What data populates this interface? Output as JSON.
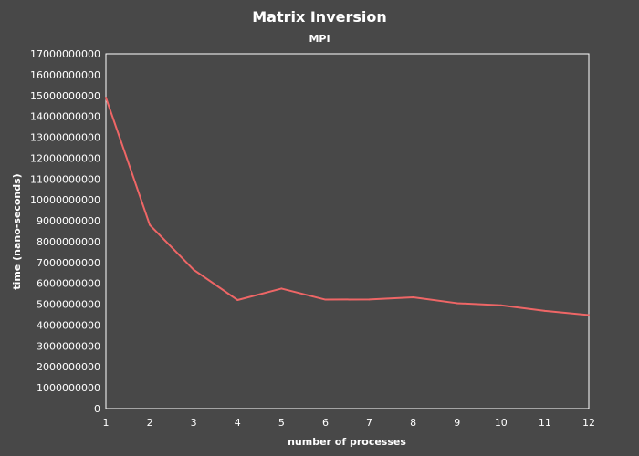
{
  "chart_data": {
    "type": "line",
    "title": "Matrix Inversion",
    "subtitle": "MPI",
    "xlabel": "number of processes",
    "ylabel": "time (nano-seconds)",
    "x": [
      1,
      2,
      3,
      4,
      5,
      6,
      7,
      8,
      9,
      10,
      11,
      12
    ],
    "series": [
      {
        "values": [
          14900000000,
          8800000000,
          6650000000,
          5200000000,
          5750000000,
          5220000000,
          5230000000,
          5330000000,
          5050000000,
          4950000000,
          4680000000,
          4480000000
        ],
        "color": "#ee6666"
      }
    ],
    "xlim": [
      1,
      12
    ],
    "ylim": [
      0,
      17000000000
    ],
    "y_ticks": [
      0,
      1000000000,
      2000000000,
      3000000000,
      4000000000,
      5000000000,
      6000000000,
      7000000000,
      8000000000,
      9000000000,
      10000000000,
      11000000000,
      12000000000,
      13000000000,
      14000000000,
      15000000000,
      16000000000,
      17000000000
    ],
    "x_ticks": [
      1,
      2,
      3,
      4,
      5,
      6,
      7,
      8,
      9,
      10,
      11,
      12
    ],
    "y_tick_labels": [
      "0",
      "1000000000",
      "2000000000",
      "3000000000",
      "4000000000",
      "5000000000",
      "6000000000",
      "7000000000",
      "8000000000",
      "9000000000",
      "10000000000",
      "11000000000",
      "12000000000",
      "13000000000",
      "14000000000",
      "15000000000",
      "16000000000",
      "17000000000"
    ],
    "x_tick_labels": [
      "1",
      "2",
      "3",
      "4",
      "5",
      "6",
      "7",
      "8",
      "9",
      "10",
      "11",
      "12"
    ],
    "grid": false,
    "legend": "none",
    "background_color": "#484848",
    "plot_border_color": "#ffffff"
  }
}
